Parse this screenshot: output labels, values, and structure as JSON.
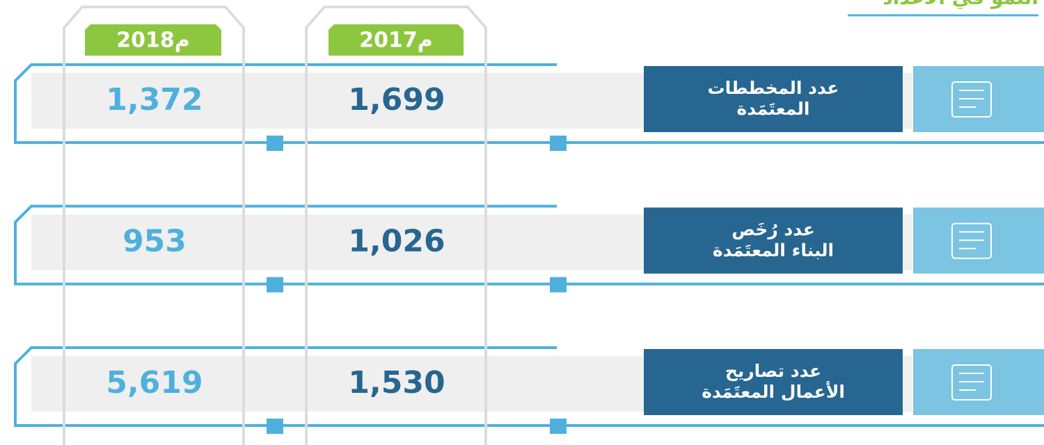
{
  "header": {
    "title": "النمو في الأعداد"
  },
  "years": [
    "2017م",
    "2018م"
  ],
  "rows": [
    {
      "label": [
        "عدد المخططات",
        "المعتَمَدة"
      ],
      "values": [
        "1,699",
        "1,372"
      ]
    },
    {
      "label": [
        "عدد رُخَص",
        "البناء المعتَمَدة"
      ],
      "values": [
        "1,026",
        "953"
      ]
    },
    {
      "label": [
        "عدد تصاريح",
        "الأعمال المعتَمَدة"
      ],
      "values": [
        "1,530",
        "5,619"
      ]
    }
  ]
}
